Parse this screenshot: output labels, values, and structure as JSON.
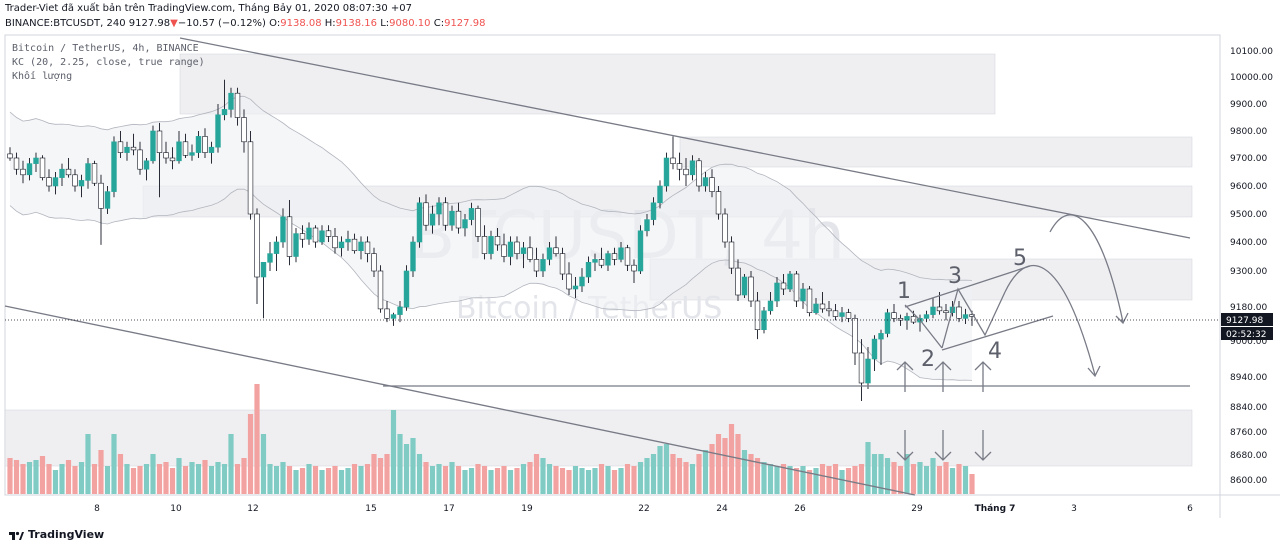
{
  "header": {
    "attribution": "Trader-Viet đã xuất bản trên TradingView.com, Tháng Bảy 01, 2020 08:07:30 +07",
    "symbol": "BINANCE:BTCUSDT, 240",
    "last": "9127.98",
    "arrow": "▼",
    "change": "−10.57 (−0.12%)",
    "o_label": "O:",
    "o": "9138.08",
    "h_label": "H:",
    "h": "9138.16",
    "l_label": "L:",
    "l": "9080.10",
    "c_label": "C:",
    "c": "9127.98"
  },
  "legend": {
    "line1": "Bitcoin / TetherUS, 4h, BINANCE",
    "line2": "KC (20, 2.25, close, true range)",
    "line3": "Khối lượng"
  },
  "watermark": {
    "main": "BTCUSDT, 4h",
    "sub": "Bitcoin / TetherUS"
  },
  "footer": {
    "brand": "TradingView"
  },
  "colors": {
    "up": "#26a69a",
    "down": "#ef5350",
    "up_vol": "#80cbc4",
    "down_vol": "#f2a2a0",
    "channel": "#c8cbd3"
  },
  "chart_data": {
    "type": "candlestick",
    "y_ticks": [
      10100,
      10000,
      9900,
      9800,
      9700,
      9600,
      9500,
      9400,
      9300,
      9180,
      9000,
      8940,
      8840,
      8760,
      8680,
      8600
    ],
    "y_tick_labels": [
      "10100.00",
      "10000.00",
      "9900.00",
      "9800.00",
      "9700.00",
      "9600.00",
      "9500.00",
      "9400.00",
      "9300.00",
      "9180.00",
      "9000.00",
      "8940.00",
      "8840.00",
      "8760.00",
      "8680.00",
      "8600.00"
    ],
    "x_tick_labels": [
      "8",
      "10",
      "12",
      "15",
      "17",
      "19",
      "22",
      "24",
      "26",
      "29",
      "Tháng 7",
      "3",
      "6"
    ],
    "last_price_label": "9127.98",
    "countdown_label": "02:52:32",
    "last_price": 9127.98,
    "annotations": [
      "1",
      "2",
      "3",
      "4",
      "5"
    ],
    "candles": [
      [
        9715,
        9740,
        9690,
        9700
      ],
      [
        9700,
        9720,
        9640,
        9660
      ],
      [
        9660,
        9690,
        9610,
        9640
      ],
      [
        9640,
        9700,
        9620,
        9680
      ],
      [
        9680,
        9720,
        9650,
        9700
      ],
      [
        9700,
        9710,
        9620,
        9630
      ],
      [
        9630,
        9660,
        9580,
        9600
      ],
      [
        9600,
        9650,
        9570,
        9630
      ],
      [
        9630,
        9680,
        9600,
        9660
      ],
      [
        9660,
        9700,
        9630,
        9640
      ],
      [
        9640,
        9660,
        9580,
        9600
      ],
      [
        9600,
        9640,
        9560,
        9620
      ],
      [
        9620,
        9700,
        9590,
        9680
      ],
      [
        9680,
        9690,
        9600,
        9610
      ],
      [
        9610,
        9640,
        9390,
        9520
      ],
      [
        9520,
        9600,
        9500,
        9580
      ],
      [
        9580,
        9780,
        9560,
        9760
      ],
      [
        9760,
        9800,
        9700,
        9720
      ],
      [
        9720,
        9760,
        9690,
        9740
      ],
      [
        9740,
        9790,
        9710,
        9730
      ],
      [
        9730,
        9760,
        9640,
        9660
      ],
      [
        9660,
        9700,
        9620,
        9690
      ],
      [
        9690,
        9820,
        9680,
        9800
      ],
      [
        9800,
        9830,
        9560,
        9720
      ],
      [
        9720,
        9760,
        9680,
        9700
      ],
      [
        9700,
        9740,
        9660,
        9690
      ],
      [
        9690,
        9800,
        9680,
        9760
      ],
      [
        9760,
        9790,
        9700,
        9710
      ],
      [
        9710,
        9750,
        9690,
        9720
      ],
      [
        9720,
        9800,
        9700,
        9780
      ],
      [
        9780,
        9810,
        9700,
        9720
      ],
      [
        9720,
        9760,
        9680,
        9740
      ],
      [
        9740,
        9900,
        9720,
        9860
      ],
      [
        9860,
        9990,
        9840,
        9880
      ],
      [
        9880,
        9960,
        9850,
        9940
      ],
      [
        9940,
        9960,
        9820,
        9850
      ],
      [
        9850,
        9880,
        9720,
        9760
      ],
      [
        9760,
        9800,
        9480,
        9500
      ],
      [
        9500,
        9520,
        9190,
        9280
      ],
      [
        9280,
        9320,
        9120,
        9330
      ],
      [
        9330,
        9400,
        9300,
        9360
      ],
      [
        9360,
        9420,
        9300,
        9400
      ],
      [
        9400,
        9520,
        9380,
        9490
      ],
      [
        9490,
        9550,
        9320,
        9350
      ],
      [
        9350,
        9450,
        9330,
        9430
      ],
      [
        9430,
        9460,
        9380,
        9410
      ],
      [
        9410,
        9470,
        9390,
        9450
      ],
      [
        9450,
        9460,
        9380,
        9400
      ],
      [
        9400,
        9460,
        9390,
        9440
      ],
      [
        9440,
        9460,
        9400,
        9420
      ],
      [
        9420,
        9450,
        9360,
        9380
      ],
      [
        9380,
        9420,
        9350,
        9400
      ],
      [
        9400,
        9440,
        9370,
        9410
      ],
      [
        9410,
        9430,
        9360,
        9370
      ],
      [
        9370,
        9420,
        9340,
        9400
      ],
      [
        9400,
        9420,
        9330,
        9360
      ],
      [
        9360,
        9380,
        9280,
        9300
      ],
      [
        9300,
        9320,
        9150,
        9170
      ],
      [
        9170,
        9200,
        9100,
        9120
      ],
      [
        9120,
        9150,
        9080,
        9140
      ],
      [
        9140,
        9200,
        9100,
        9180
      ],
      [
        9180,
        9320,
        9160,
        9300
      ],
      [
        9300,
        9420,
        9280,
        9400
      ],
      [
        9400,
        9560,
        9380,
        9540
      ],
      [
        9540,
        9570,
        9440,
        9460
      ],
      [
        9460,
        9530,
        9430,
        9500
      ],
      [
        9500,
        9560,
        9460,
        9540
      ],
      [
        9540,
        9560,
        9440,
        9460
      ],
      [
        9460,
        9530,
        9440,
        9510
      ],
      [
        9510,
        9540,
        9430,
        9450
      ],
      [
        9450,
        9500,
        9420,
        9480
      ],
      [
        9480,
        9540,
        9460,
        9520
      ],
      [
        9520,
        9530,
        9400,
        9420
      ],
      [
        9420,
        9460,
        9340,
        9360
      ],
      [
        9360,
        9440,
        9340,
        9420
      ],
      [
        9420,
        9450,
        9370,
        9390
      ],
      [
        9390,
        9430,
        9330,
        9350
      ],
      [
        9350,
        9420,
        9320,
        9400
      ],
      [
        9400,
        9420,
        9340,
        9360
      ],
      [
        9360,
        9400,
        9310,
        9380
      ],
      [
        9380,
        9420,
        9330,
        9340
      ],
      [
        9340,
        9380,
        9280,
        9300
      ],
      [
        9300,
        9360,
        9280,
        9340
      ],
      [
        9340,
        9400,
        9320,
        9380
      ],
      [
        9380,
        9420,
        9350,
        9360
      ],
      [
        9360,
        9380,
        9270,
        9290
      ],
      [
        9290,
        9330,
        9220,
        9240
      ],
      [
        9240,
        9280,
        9210,
        9250
      ],
      [
        9250,
        9310,
        9230,
        9280
      ],
      [
        9280,
        9350,
        9260,
        9330
      ],
      [
        9330,
        9360,
        9300,
        9340
      ],
      [
        9340,
        9380,
        9310,
        9320
      ],
      [
        9320,
        9370,
        9300,
        9360
      ],
      [
        9360,
        9380,
        9320,
        9340
      ],
      [
        9340,
        9400,
        9330,
        9380
      ],
      [
        9380,
        9390,
        9300,
        9320
      ],
      [
        9320,
        9340,
        9260,
        9300
      ],
      [
        9300,
        9460,
        9290,
        9440
      ],
      [
        9440,
        9500,
        9420,
        9480
      ],
      [
        9480,
        9560,
        9460,
        9540
      ],
      [
        9540,
        9620,
        9520,
        9600
      ],
      [
        9600,
        9720,
        9580,
        9700
      ],
      [
        9700,
        9780,
        9660,
        9680
      ],
      [
        9680,
        9720,
        9620,
        9660
      ],
      [
        9660,
        9700,
        9600,
        9640
      ],
      [
        9640,
        9710,
        9620,
        9690
      ],
      [
        9690,
        9700,
        9580,
        9600
      ],
      [
        9600,
        9650,
        9580,
        9630
      ],
      [
        9630,
        9660,
        9560,
        9580
      ],
      [
        9580,
        9600,
        9480,
        9500
      ],
      [
        9500,
        9520,
        9380,
        9400
      ],
      [
        9400,
        9420,
        9290,
        9310
      ],
      [
        9310,
        9340,
        9200,
        9220
      ],
      [
        9220,
        9290,
        9210,
        9280
      ],
      [
        9280,
        9300,
        9180,
        9200
      ],
      [
        9200,
        9230,
        9010,
        9060
      ],
      [
        9060,
        9180,
        9040,
        9160
      ],
      [
        9160,
        9230,
        9140,
        9200
      ],
      [
        9200,
        9280,
        9180,
        9260
      ],
      [
        9260,
        9290,
        9220,
        9240
      ],
      [
        9240,
        9300,
        9230,
        9290
      ],
      [
        9290,
        9300,
        9180,
        9200
      ],
      [
        9200,
        9260,
        9170,
        9240
      ],
      [
        9240,
        9250,
        9130,
        9150
      ],
      [
        9150,
        9210,
        9140,
        9190
      ],
      [
        9190,
        9230,
        9150,
        9170
      ],
      [
        9170,
        9200,
        9130,
        9160
      ],
      [
        9160,
        9190,
        9110,
        9130
      ],
      [
        9130,
        9180,
        9100,
        9150
      ],
      [
        9150,
        9170,
        9100,
        9120
      ],
      [
        9120,
        9140,
        8960,
        8980
      ],
      [
        8980,
        9010,
        8860,
        8920
      ],
      [
        8920,
        8990,
        8900,
        8970
      ],
      [
        8970,
        9030,
        8950,
        9010
      ],
      [
        9010,
        9060,
        8960,
        9040
      ],
      [
        9040,
        9170,
        9020,
        9150
      ],
      [
        9150,
        9190,
        9100,
        9120
      ],
      [
        9120,
        9140,
        9080,
        9110
      ],
      [
        9110,
        9150,
        9060,
        9130
      ],
      [
        9130,
        9160,
        9090,
        9100
      ],
      [
        9100,
        9140,
        9050,
        9120
      ],
      [
        9120,
        9160,
        9100,
        9140
      ],
      [
        9140,
        9210,
        9120,
        9180
      ],
      [
        9180,
        9230,
        9140,
        9160
      ],
      [
        9160,
        9190,
        9110,
        9150
      ],
      [
        9150,
        9200,
        9130,
        9180
      ],
      [
        9180,
        9200,
        9100,
        9120
      ],
      [
        9120,
        9170,
        9090,
        9140
      ],
      [
        9140,
        9160,
        9080,
        9130
      ]
    ],
    "volumes": [
      0.18,
      0.17,
      0.15,
      0.16,
      0.17,
      0.19,
      0.15,
      0.12,
      0.15,
      0.17,
      0.14,
      0.16,
      0.3,
      0.15,
      0.22,
      0.14,
      0.3,
      0.2,
      0.15,
      0.13,
      0.14,
      0.15,
      0.2,
      0.15,
      0.16,
      0.13,
      0.18,
      0.14,
      0.16,
      0.15,
      0.17,
      0.14,
      0.16,
      0.15,
      0.3,
      0.15,
      0.18,
      0.4,
      0.55,
      0.3,
      0.15,
      0.14,
      0.16,
      0.14,
      0.12,
      0.13,
      0.15,
      0.14,
      0.12,
      0.13,
      0.14,
      0.12,
      0.13,
      0.15,
      0.14,
      0.15,
      0.2,
      0.18,
      0.2,
      0.42,
      0.3,
      0.25,
      0.28,
      0.2,
      0.16,
      0.14,
      0.15,
      0.14,
      0.16,
      0.14,
      0.12,
      0.13,
      0.15,
      0.14,
      0.12,
      0.13,
      0.14,
      0.12,
      0.13,
      0.15,
      0.16,
      0.2,
      0.18,
      0.15,
      0.14,
      0.13,
      0.12,
      0.14,
      0.13,
      0.12,
      0.13,
      0.15,
      0.14,
      0.12,
      0.13,
      0.15,
      0.14,
      0.16,
      0.18,
      0.2,
      0.24,
      0.25,
      0.2,
      0.18,
      0.16,
      0.15,
      0.2,
      0.22,
      0.25,
      0.3,
      0.28,
      0.35,
      0.3,
      0.22,
      0.2,
      0.18,
      0.16,
      0.15,
      0.14,
      0.15,
      0.14,
      0.13,
      0.14,
      0.12,
      0.13,
      0.15,
      0.14,
      0.15,
      0.12,
      0.13,
      0.14,
      0.15,
      0.26,
      0.2,
      0.2,
      0.18,
      0.16,
      0.14,
      0.2,
      0.15,
      0.16,
      0.14,
      0.18,
      0.14,
      0.16,
      0.13,
      0.15,
      0.14,
      0.1,
      0.08
    ]
  }
}
